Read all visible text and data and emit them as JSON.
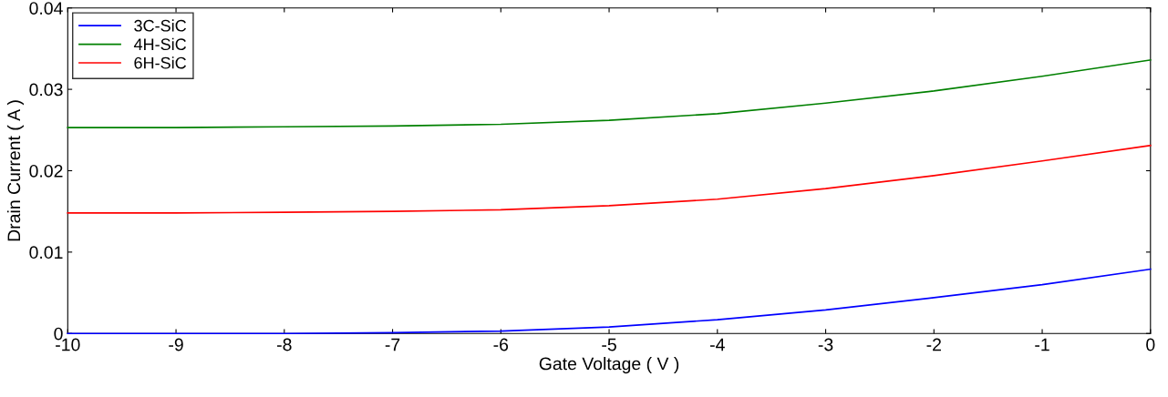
{
  "chart_data": {
    "type": "line",
    "xlabel": "Gate Voltage ( V )",
    "ylabel": "Drain Current ( A )",
    "x": [
      -10,
      -9,
      -8,
      -7,
      -6,
      -5,
      -4,
      -3,
      -2,
      -1,
      0
    ],
    "series": [
      {
        "name": "3C-SiC",
        "color": "#0000ff",
        "values": [
          0,
          0,
          0,
          0.0001,
          0.0003,
          0.0008,
          0.0017,
          0.0029,
          0.0044,
          0.006,
          0.0079
        ]
      },
      {
        "name": "4H-SiC",
        "color": "#008000",
        "values": [
          0.0253,
          0.0253,
          0.0254,
          0.0255,
          0.0257,
          0.0262,
          0.027,
          0.0283,
          0.0298,
          0.0316,
          0.0336
        ]
      },
      {
        "name": "6H-SiC",
        "color": "#ff0000",
        "values": [
          0.0148,
          0.0148,
          0.0149,
          0.015,
          0.0152,
          0.0157,
          0.0165,
          0.0178,
          0.0194,
          0.0212,
          0.0231
        ]
      }
    ],
    "xlim": [
      -10,
      0
    ],
    "xticks": [
      -10,
      -9,
      -8,
      -7,
      -6,
      -5,
      -4,
      -3,
      -2,
      -1,
      0
    ],
    "ylim": [
      0,
      0.04
    ],
    "yticks": [
      0,
      0.01,
      0.02,
      0.03,
      0.04
    ],
    "legend": "top left",
    "grid": false,
    "marker": "none",
    "line_style": "solid"
  }
}
